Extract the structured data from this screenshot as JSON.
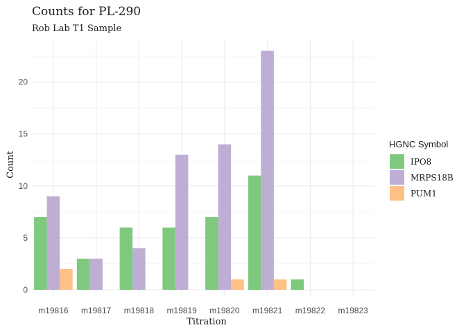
{
  "chart_data": {
    "type": "bar",
    "title": "Counts for PL-290",
    "subtitle": "Rob Lab T1 Sample",
    "xlabel": "Titration",
    "ylabel": "Count",
    "categories": [
      "m19816",
      "m19817",
      "m19818",
      "m19819",
      "m19820",
      "m19821",
      "m19822",
      "m19823"
    ],
    "series": [
      {
        "name": "IPO8",
        "color": "#7fc97f",
        "values": [
          7,
          3,
          6,
          6,
          7,
          11,
          1,
          0
        ]
      },
      {
        "name": "MRPS18B",
        "color": "#beaed4",
        "values": [
          9,
          3,
          4,
          13,
          14,
          23,
          0,
          0
        ]
      },
      {
        "name": "PUM1",
        "color": "#fdc086",
        "values": [
          2,
          0,
          0,
          0,
          1,
          1,
          0,
          0
        ]
      }
    ],
    "ylim": [
      0,
      24
    ],
    "yticks": [
      0,
      5,
      10,
      15,
      20
    ],
    "grid": true,
    "legend": {
      "title": "HGNC Symbol",
      "position": "right"
    }
  }
}
